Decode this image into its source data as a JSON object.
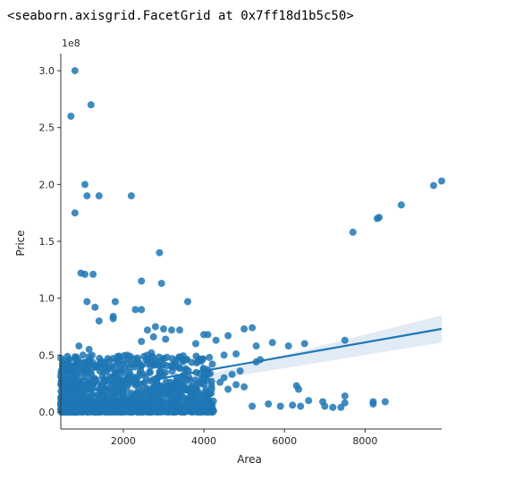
{
  "output_text": "<seaborn.axisgrid.FacetGrid at 0x7ff18d1b5c50>",
  "chart_data": {
    "type": "scatter",
    "title": "",
    "xlabel": "Area",
    "ylabel": "Price",
    "y_offset_label": "1e8",
    "xlim": [
      450,
      9900
    ],
    "ylim": [
      -0.15,
      3.15
    ],
    "y_unit_multiplier": 100000000,
    "x_ticks": [
      2000,
      4000,
      6000,
      8000
    ],
    "x_tick_labels": [
      "2000",
      "4000",
      "6000",
      "8000"
    ],
    "y_ticks": [
      0.0,
      0.5,
      1.0,
      1.5,
      2.0,
      2.5,
      3.0
    ],
    "y_tick_labels": [
      "0.0",
      "0.5",
      "1.0",
      "1.5",
      "2.0",
      "2.5",
      "3.0"
    ],
    "grid": false,
    "legend": "none",
    "colors": {
      "points": "#1f77b4",
      "regression": "#1f77b4",
      "ci_band": "#c6dbef"
    },
    "regression": {
      "x": [
        450,
        9900
      ],
      "y": [
        0.14,
        0.73
      ]
    },
    "ci_band": {
      "x": [
        450,
        4000,
        9900
      ],
      "lower": [
        0.06,
        0.27,
        0.61
      ],
      "upper": [
        0.22,
        0.32,
        0.85
      ]
    },
    "points": [
      [
        800,
        3.0
      ],
      [
        1200,
        2.7
      ],
      [
        700,
        2.6
      ],
      [
        1050,
        2.0
      ],
      [
        1100,
        1.9
      ],
      [
        1400,
        1.9
      ],
      [
        2200,
        1.9
      ],
      [
        800,
        1.75
      ],
      [
        2900,
        1.4
      ],
      [
        950,
        1.22
      ],
      [
        1050,
        1.21
      ],
      [
        1250,
        1.21
      ],
      [
        2450,
        1.15
      ],
      [
        2950,
        1.13
      ],
      [
        1100,
        0.97
      ],
      [
        1300,
        0.92
      ],
      [
        1800,
        0.97
      ],
      [
        2300,
        0.9
      ],
      [
        2450,
        0.9
      ],
      [
        3600,
        0.97
      ],
      [
        1750,
        0.84
      ],
      [
        1400,
        0.8
      ],
      [
        1750,
        0.82
      ],
      [
        2600,
        0.72
      ],
      [
        2800,
        0.75
      ],
      [
        3000,
        0.73
      ],
      [
        3200,
        0.72
      ],
      [
        3400,
        0.72
      ],
      [
        4000,
        0.68
      ],
      [
        4100,
        0.68
      ],
      [
        2450,
        0.62
      ],
      [
        2750,
        0.66
      ],
      [
        3050,
        0.64
      ],
      [
        3800,
        0.6
      ],
      [
        4300,
        0.63
      ],
      [
        4600,
        0.67
      ],
      [
        5000,
        0.73
      ],
      [
        5200,
        0.74
      ],
      [
        5700,
        0.61
      ],
      [
        6100,
        0.58
      ],
      [
        6500,
        0.6
      ],
      [
        7500,
        0.63
      ],
      [
        900,
        0.58
      ],
      [
        1150,
        0.55
      ],
      [
        1000,
        0.5
      ],
      [
        1900,
        0.49
      ],
      [
        2700,
        0.52
      ],
      [
        3500,
        0.45
      ],
      [
        4500,
        0.5
      ],
      [
        4800,
        0.51
      ],
      [
        5300,
        0.58
      ],
      [
        5400,
        0.46
      ],
      [
        5300,
        0.44
      ],
      [
        4900,
        0.36
      ],
      [
        4700,
        0.33
      ],
      [
        4500,
        0.3
      ],
      [
        4000,
        0.32
      ],
      [
        3900,
        0.26
      ],
      [
        4400,
        0.26
      ],
      [
        4800,
        0.24
      ],
      [
        6300,
        0.23
      ],
      [
        6350,
        0.2
      ],
      [
        4600,
        0.2
      ],
      [
        5000,
        0.22
      ],
      [
        5600,
        0.07
      ],
      [
        5200,
        0.05
      ],
      [
        5900,
        0.05
      ],
      [
        6200,
        0.06
      ],
      [
        6400,
        0.05
      ],
      [
        6600,
        0.1
      ],
      [
        6950,
        0.09
      ],
      [
        7000,
        0.05
      ],
      [
        7200,
        0.04
      ],
      [
        7400,
        0.04
      ],
      [
        7500,
        0.14
      ],
      [
        7500,
        0.08
      ],
      [
        8200,
        0.09
      ],
      [
        8200,
        0.07
      ],
      [
        8500,
        0.09
      ],
      [
        7700,
        1.58
      ],
      [
        8300,
        1.7
      ],
      [
        8350,
        1.71
      ],
      [
        8900,
        1.82
      ],
      [
        9700,
        1.99
      ],
      [
        9900,
        2.03
      ]
    ]
  }
}
